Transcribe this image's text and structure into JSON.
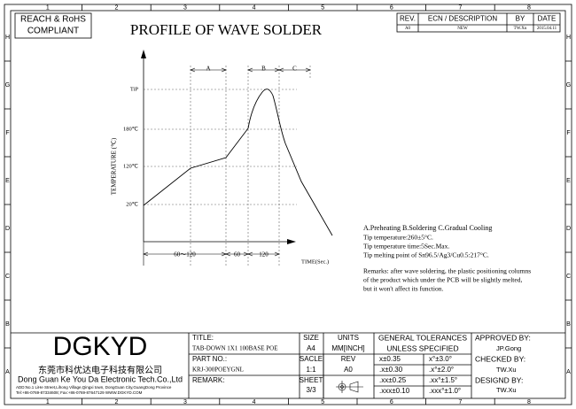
{
  "frame": {
    "columns": [
      "1",
      "2",
      "3",
      "4",
      "5",
      "6",
      "7",
      "8"
    ],
    "rows": [
      "H",
      "G",
      "F",
      "E",
      "D",
      "C",
      "B",
      "A"
    ]
  },
  "header": {
    "compliance": [
      "REACH & RoHS",
      "COMPLIANT"
    ],
    "title": "PROFILE OF WAVE SOLDER"
  },
  "revision_table": {
    "headers": [
      "REV.",
      "ECN / DESCRIPTION",
      "BY",
      "DATE"
    ],
    "rows": [
      [
        "A0",
        "NEW",
        "TW.Xu",
        "2015.04.11"
      ]
    ]
  },
  "profile": {
    "y_axis_label": "TEMPERATURE (℃)",
    "levels": [
      "TiP",
      "180℃",
      "120℃",
      "20℃"
    ],
    "zones": [
      "A",
      "B",
      "C"
    ],
    "intervals": [
      "60～120",
      "60",
      "120"
    ],
    "x_axis_label": "TIME(Sec.)"
  },
  "notes": {
    "legend": "A.Preheating  B.Soldering  C.Gradual Cooling",
    "specs": [
      "Tip temperature:260±5°C.",
      "Tip temperature time:5Sec.Max.",
      "Tip melting point of Sn96.5/Ag3/Cu0.5:217°C."
    ],
    "remarks": [
      "Remarks: after wave soldering, the plastic positioning columns",
      "of the product  which under the PCB will be slightly melted,",
      "but it won't affect its function."
    ]
  },
  "title_block": {
    "logo": "DGKYD",
    "company_cn": "东莞市科优达电子科技有限公司",
    "company_en": "Dong Guan Ke You Da Electronic Tech.Co.,Ltd",
    "address": "ADD:No.1 LiHe Street,Lihong Village,Qingxi town, DongGuan City,GuangDong Province",
    "contact": "Tel:+86-0769-87334608; Fax:+86-0769-87647129 WWW.DGKYD.COM",
    "title_label": "TITLE:",
    "title": "TAB-DOWN 1X1 100BASE POE",
    "part_label": "PART NO.:",
    "part_no": "KRJ-300POEYGNL",
    "remark_label": "REMARK:",
    "size_label": "SIZE",
    "size": "A4",
    "scale_label": "SACLE",
    "scale": "1:1",
    "sheet_label": "SHEET",
    "sheet": "3/3",
    "units_label": "UNITS",
    "units": "MM[INCH]",
    "rev_label": "REV",
    "rev": "A0",
    "tolerance_header": [
      "GENERAL TOLERANCES",
      "UNLESS SPECIFIED"
    ],
    "tolerances": [
      [
        "x±0.35",
        "x°±3.0°"
      ],
      [
        ".x±0.30",
        ".x°±2.0°"
      ],
      [
        ".xx±0.25",
        ".xx°±1.5°"
      ],
      [
        ".xxx±0.10",
        ".xxx°±1.0°"
      ]
    ],
    "approved_label": "APPROVED BY:",
    "approved": "JP.Gong",
    "checked_label": "CHECKED BY:",
    "checked": "TW.Xu",
    "designed_label": "DESIGND BY:",
    "designed": "TW.Xu"
  }
}
